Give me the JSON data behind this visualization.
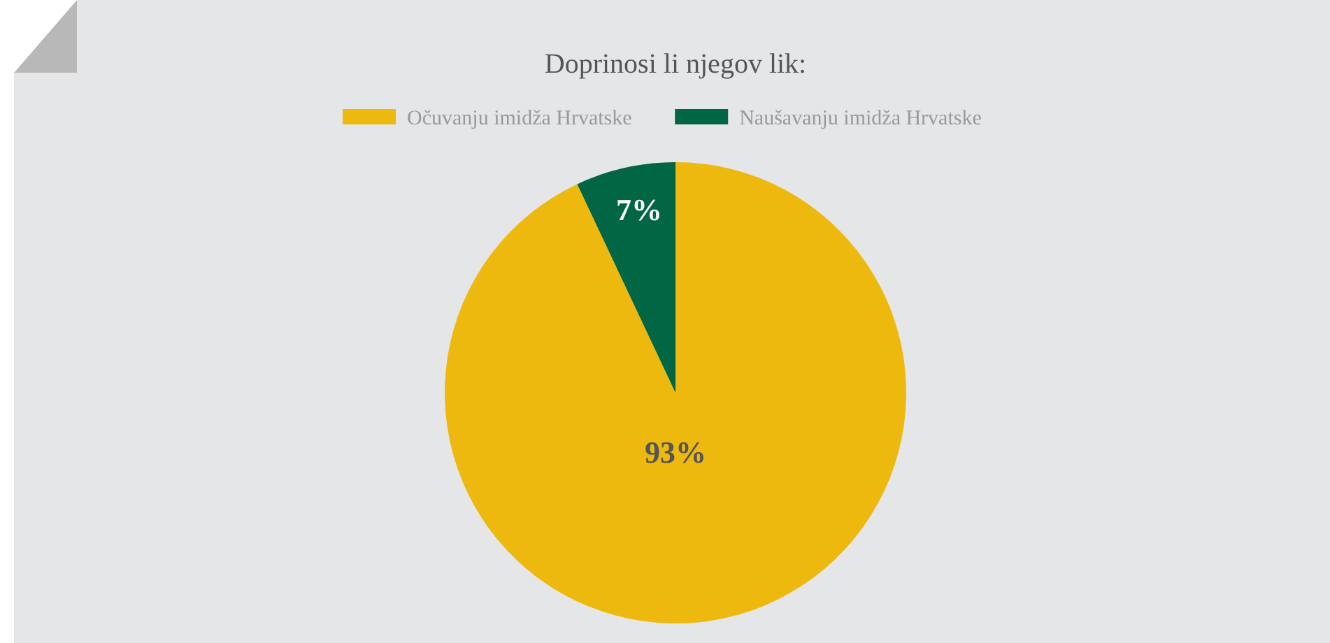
{
  "chart_data": {
    "type": "pie",
    "title": "Doprinosi li njegov lik:",
    "categories": [
      "Očuvanju imidža Hrvatske",
      "Naušavanju imidža Hrvatske"
    ],
    "values": [
      93,
      7
    ],
    "colors": [
      "#eeb90e",
      "#006644"
    ],
    "value_labels": [
      "93%",
      "7%"
    ],
    "legend": "top"
  }
}
